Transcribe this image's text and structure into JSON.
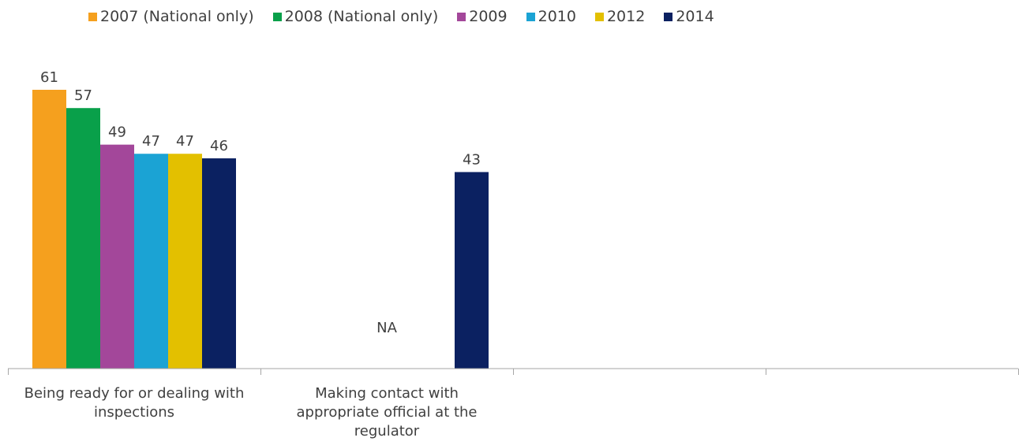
{
  "chart_data": {
    "type": "bar",
    "categories": [
      "Being ready for or dealing with inspections",
      "Making contact with appropriate official at the regulator",
      "",
      ""
    ],
    "category_lines": [
      [
        "Being ready for or dealing with",
        "inspections"
      ],
      [
        "Making contact with",
        "appropriate official at the",
        "regulator"
      ],
      [],
      []
    ],
    "series": [
      {
        "name": "2007 (National only)",
        "color": "#F5A01E",
        "values": [
          61,
          null,
          null,
          null
        ]
      },
      {
        "name": "2008 (National only)",
        "color": "#09A04A",
        "values": [
          57,
          null,
          null,
          null
        ]
      },
      {
        "name": "2009",
        "color": "#A3479A",
        "values": [
          49,
          null,
          null,
          null
        ]
      },
      {
        "name": "2010",
        "color": "#1BA3D4",
        "values": [
          47,
          null,
          null,
          null
        ]
      },
      {
        "name": "2012",
        "color": "#E3C000",
        "values": [
          47,
          null,
          null,
          null
        ]
      },
      {
        "name": "2014",
        "color": "#0B2161",
        "values": [
          46,
          43,
          null,
          null
        ]
      }
    ],
    "annotations": [
      {
        "category_index": 1,
        "text": "NA"
      }
    ],
    "ylim": [
      0,
      70
    ],
    "grid": false,
    "legend_position": "top",
    "xlabel": "",
    "ylabel": ""
  }
}
